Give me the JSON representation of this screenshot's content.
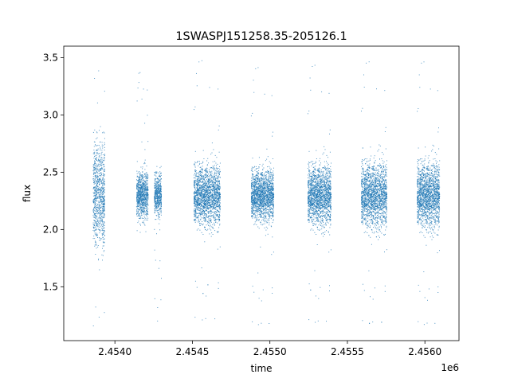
{
  "chart_data": {
    "type": "scatter",
    "title": "1SWASPJ151258.35-205126.1",
    "xlabel": "time",
    "ylabel": "flux",
    "x_offset_label": "1e6",
    "xlim": [
      2453670,
      2456220
    ],
    "ylim": [
      1.03,
      3.6
    ],
    "x_ticks": [
      2454000,
      2454500,
      2455000,
      2455500,
      2456000
    ],
    "x_tick_labels": [
      "2.4540",
      "2.4545",
      "2.4550",
      "2.4555",
      "2.4560"
    ],
    "y_ticks": [
      1.5,
      2.0,
      2.5,
      3.0,
      3.5
    ],
    "y_tick_labels": [
      "1.5",
      "2.0",
      "2.5",
      "3.0",
      "3.5"
    ],
    "grid": false,
    "legend": "none",
    "marker_color": "#1f77b4",
    "series": [
      {
        "segments": [
          {
            "x_range": [
              2453860,
              2453935
            ],
            "median": 2.3,
            "spread": 0.22,
            "min": 1.13,
            "max": 3.48
          },
          {
            "x_range": [
              2454140,
              2454215
            ],
            "median": 2.3,
            "spread": 0.1,
            "min": 1.95,
            "max": 3.38
          },
          {
            "x_range": [
              2454255,
              2454300
            ],
            "median": 2.3,
            "spread": 0.09,
            "min": 1.17,
            "max": 2.55
          },
          {
            "x_range": [
              2454510,
              2454680
            ],
            "median": 2.3,
            "spread": 0.13,
            "min": 1.17,
            "max": 3.49
          },
          {
            "x_range": [
              2454880,
              2455025
            ],
            "median": 2.3,
            "spread": 0.11,
            "min": 1.13,
            "max": 3.43
          },
          {
            "x_range": [
              2455245,
              2455395
            ],
            "median": 2.3,
            "spread": 0.13,
            "min": 1.15,
            "max": 3.45
          },
          {
            "x_range": [
              2455590,
              2455755
            ],
            "median": 2.3,
            "spread": 0.14,
            "min": 1.14,
            "max": 3.48
          },
          {
            "x_range": [
              2455950,
              2456095
            ],
            "median": 2.3,
            "spread": 0.14,
            "min": 1.13,
            "max": 3.48
          }
        ]
      }
    ]
  }
}
